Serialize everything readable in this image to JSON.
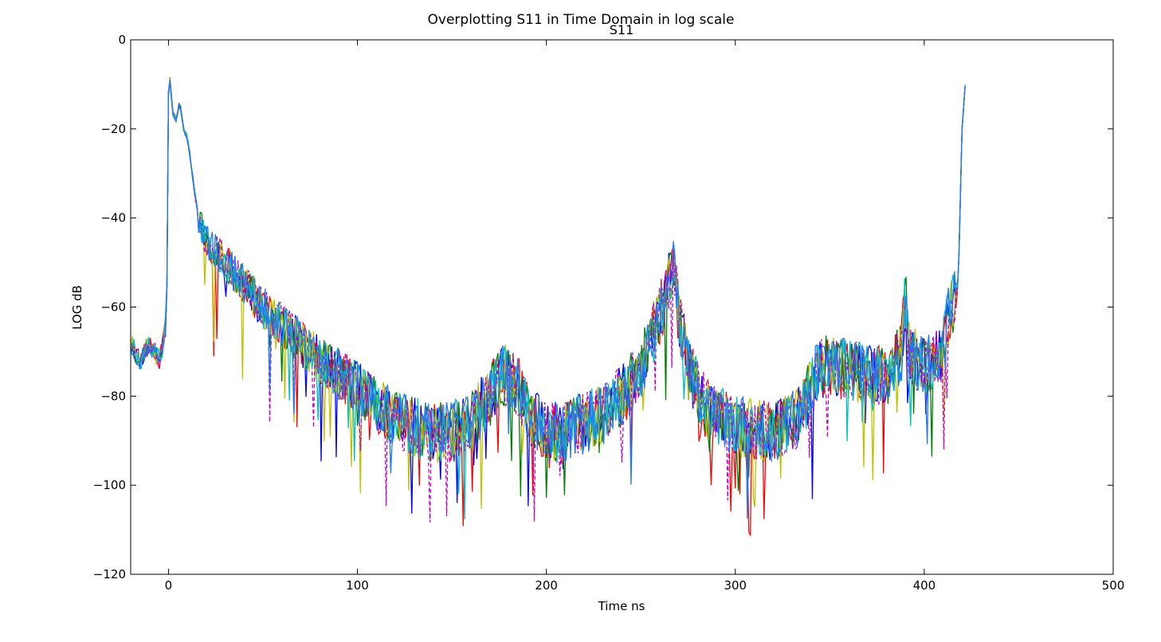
{
  "chart_data": {
    "type": "line",
    "title": "Overplotting S11 in Time Domain in log scale",
    "subtitle": "S11",
    "xlabel": "Time  ns",
    "ylabel": "LOG dB",
    "xlim": [
      -20,
      500
    ],
    "ylim": [
      -120,
      0
    ],
    "x_ticks": [
      0,
      100,
      200,
      300,
      400,
      500
    ],
    "x_tick_labels": [
      "0",
      "100",
      "200",
      "300",
      "400",
      "500"
    ],
    "y_ticks": [
      0,
      -20,
      -40,
      -60,
      -80,
      -100,
      -120
    ],
    "y_tick_labels": [
      "0",
      "−20",
      "−40",
      "−60",
      "−80",
      "−100",
      "−120"
    ],
    "grid": false,
    "legend": "none",
    "anchors": [
      [
        -20,
        -68
      ],
      [
        -15,
        -72
      ],
      [
        -10,
        -68
      ],
      [
        -5,
        -72
      ],
      [
        -2,
        -66
      ],
      [
        -1,
        -62
      ],
      [
        -0.5,
        -45
      ],
      [
        0,
        -12
      ],
      [
        1,
        -8
      ],
      [
        2,
        -16
      ],
      [
        4,
        -18
      ],
      [
        6,
        -14
      ],
      [
        8,
        -20
      ],
      [
        10,
        -22
      ],
      [
        12,
        -28
      ],
      [
        14,
        -35
      ],
      [
        16,
        -40
      ],
      [
        20,
        -45
      ],
      [
        30,
        -50
      ],
      [
        40,
        -55
      ],
      [
        50,
        -60
      ],
      [
        60,
        -64
      ],
      [
        70,
        -68
      ],
      [
        80,
        -72
      ],
      [
        90,
        -75
      ],
      [
        100,
        -78
      ],
      [
        110,
        -82
      ],
      [
        120,
        -85
      ],
      [
        130,
        -87
      ],
      [
        140,
        -88
      ],
      [
        150,
        -88
      ],
      [
        160,
        -86
      ],
      [
        170,
        -80
      ],
      [
        175,
        -76
      ],
      [
        180,
        -75
      ],
      [
        185,
        -78
      ],
      [
        190,
        -84
      ],
      [
        200,
        -88
      ],
      [
        210,
        -88
      ],
      [
        220,
        -86
      ],
      [
        230,
        -84
      ],
      [
        240,
        -80
      ],
      [
        250,
        -74
      ],
      [
        258,
        -64
      ],
      [
        263,
        -58
      ],
      [
        267,
        -50
      ],
      [
        270,
        -62
      ],
      [
        275,
        -74
      ],
      [
        285,
        -83
      ],
      [
        300,
        -87
      ],
      [
        320,
        -88
      ],
      [
        335,
        -84
      ],
      [
        340,
        -78
      ],
      [
        345,
        -73
      ],
      [
        360,
        -74
      ],
      [
        380,
        -76
      ],
      [
        388,
        -70
      ],
      [
        390,
        -57
      ],
      [
        392,
        -70
      ],
      [
        400,
        -74
      ],
      [
        410,
        -70
      ],
      [
        413,
        -62
      ],
      [
        418,
        -55
      ],
      [
        420,
        -20
      ],
      [
        422,
        -8
      ]
    ],
    "series": [
      {
        "color": "#0000ff",
        "dash": "solid",
        "seed": 11
      },
      {
        "color": "#ff0000",
        "dash": "solid",
        "seed": 23
      },
      {
        "color": "#008000",
        "dash": "solid",
        "seed": 37
      },
      {
        "color": "#c0c000",
        "dash": "solid",
        "seed": 51
      },
      {
        "color": "#c000c0",
        "dash": "dashed",
        "seed": 67
      },
      {
        "color": "#00bfbf",
        "dash": "solid",
        "seed": 79
      },
      {
        "color": "#1f77ff",
        "dash": "solid",
        "seed": 97
      }
    ]
  }
}
